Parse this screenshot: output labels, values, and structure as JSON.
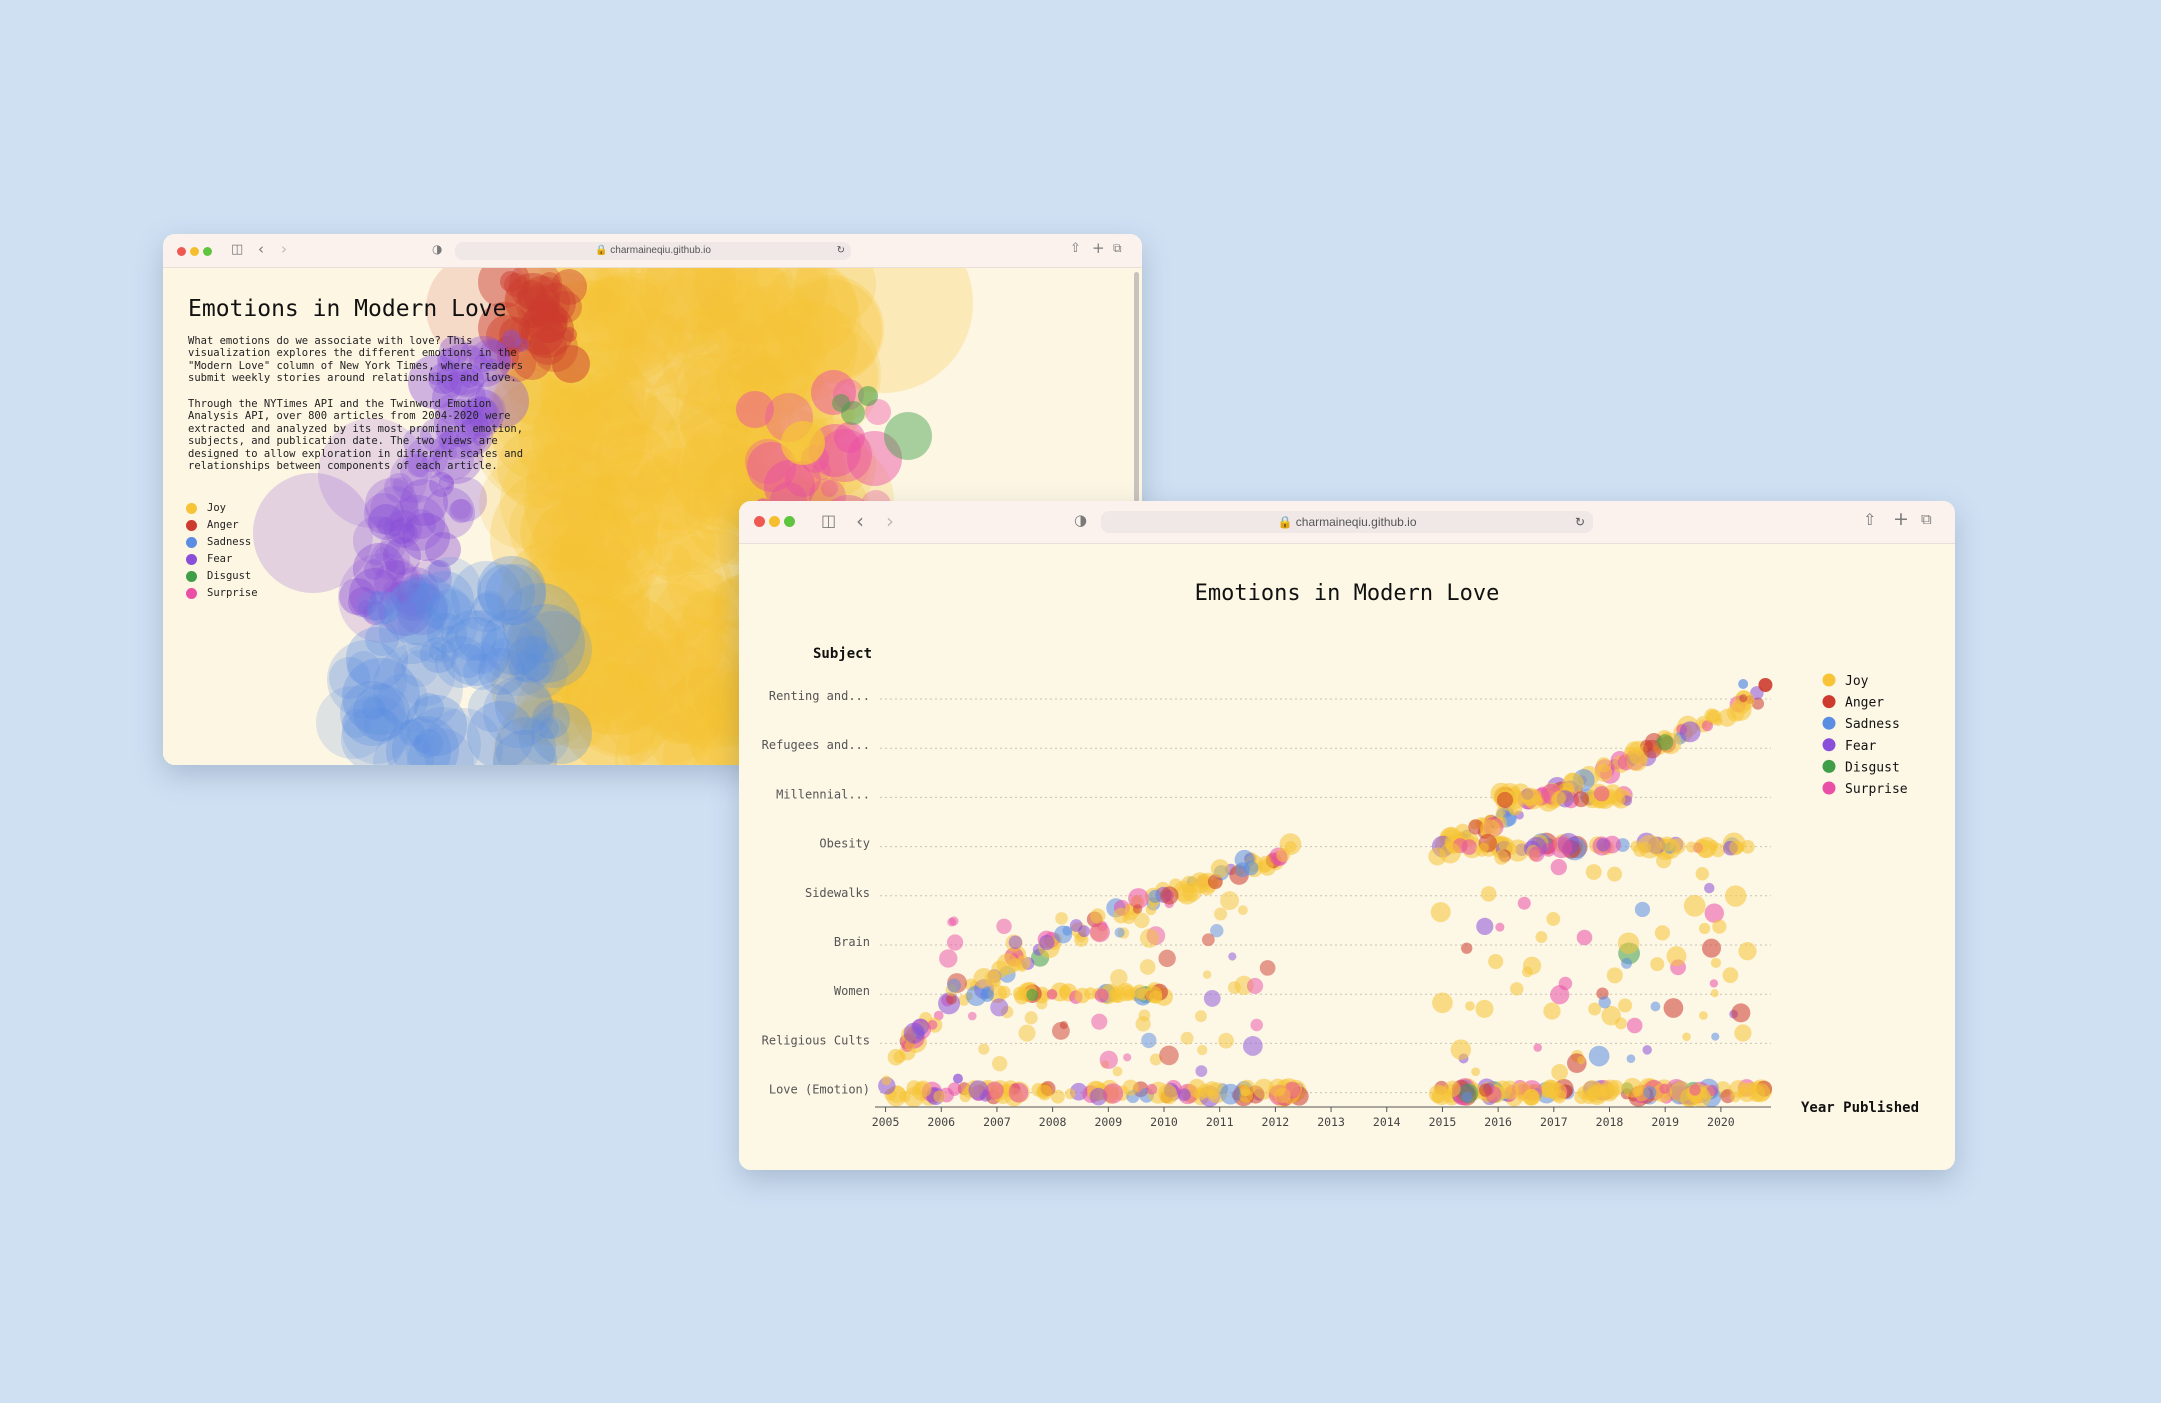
{
  "colors": {
    "joy": "#f6c436",
    "anger": "#cc3b2e",
    "sadness": "#5b8ee2",
    "fear": "#8a4fd8",
    "disgust": "#3f9e48",
    "surprise": "#ea4fa6"
  },
  "browser_back": {
    "url": "charmaineqiu.github.io",
    "icons": [
      "sidebar-icon",
      "back-icon",
      "forward-icon",
      "shield-icon",
      "share-icon",
      "new-tab-icon",
      "tabs-icon",
      "reload-icon",
      "lock-icon"
    ]
  },
  "browser_front": {
    "url": "charmaineqiu.github.io"
  },
  "intro_page": {
    "title": "Emotions in Modern Love",
    "paragraph1": "What emotions do we associate with love? This visualization explores the different emotions in the \"Modern Love\" column of New York Times, where readers submit weekly stories around relationships and love.",
    "paragraph2": "Through the NYTimes API and the Twinword Emotion Analysis API, over 800 articles from 2004-2020 were extracted and analyzed by its most prominent emotion, subjects, and publication date. The two views are designed to allow exploration in different scales and relationships between components of each article.",
    "legend": [
      {
        "label": "Joy",
        "color": "#f6c436"
      },
      {
        "label": "Anger",
        "color": "#cc3b2e"
      },
      {
        "label": "Sadness",
        "color": "#5b8ee2"
      },
      {
        "label": "Fear",
        "color": "#8a4fd8"
      },
      {
        "label": "Disgust",
        "color": "#3f9e48"
      },
      {
        "label": "Surprise",
        "color": "#ea4fa6"
      }
    ]
  },
  "chart_page": {
    "title": "Emotions in Modern Love"
  },
  "chart_data": {
    "type": "scatter",
    "title": "Emotions in Modern Love",
    "ylabel": "Subject",
    "xlabel": "Year Published",
    "categories": [
      "Renting and...",
      "Refugees and...",
      "Millennial...",
      "Obesity",
      "Sidewalks",
      "Brain",
      "Women",
      "Religious Cults",
      "Love (Emotion)"
    ],
    "x_ticks": [
      "2005",
      "2006",
      "2007",
      "2008",
      "2009",
      "2010",
      "2011",
      "2012",
      "2013",
      "2014",
      "2015",
      "2016",
      "2017",
      "2018",
      "2019",
      "2020"
    ],
    "xlim": [
      2004.9,
      2020.9
    ],
    "grid": "horizontal-dotted",
    "legend_position": "right",
    "legend": [
      {
        "label": "Joy",
        "color": "#f6c436"
      },
      {
        "label": "Anger",
        "color": "#cc3b2e"
      },
      {
        "label": "Sadness",
        "color": "#5b8ee2"
      },
      {
        "label": "Fear",
        "color": "#8a4fd8"
      },
      {
        "label": "Disgust",
        "color": "#3f9e48"
      },
      {
        "label": "Surprise",
        "color": "#ea4fa6"
      }
    ]
  }
}
